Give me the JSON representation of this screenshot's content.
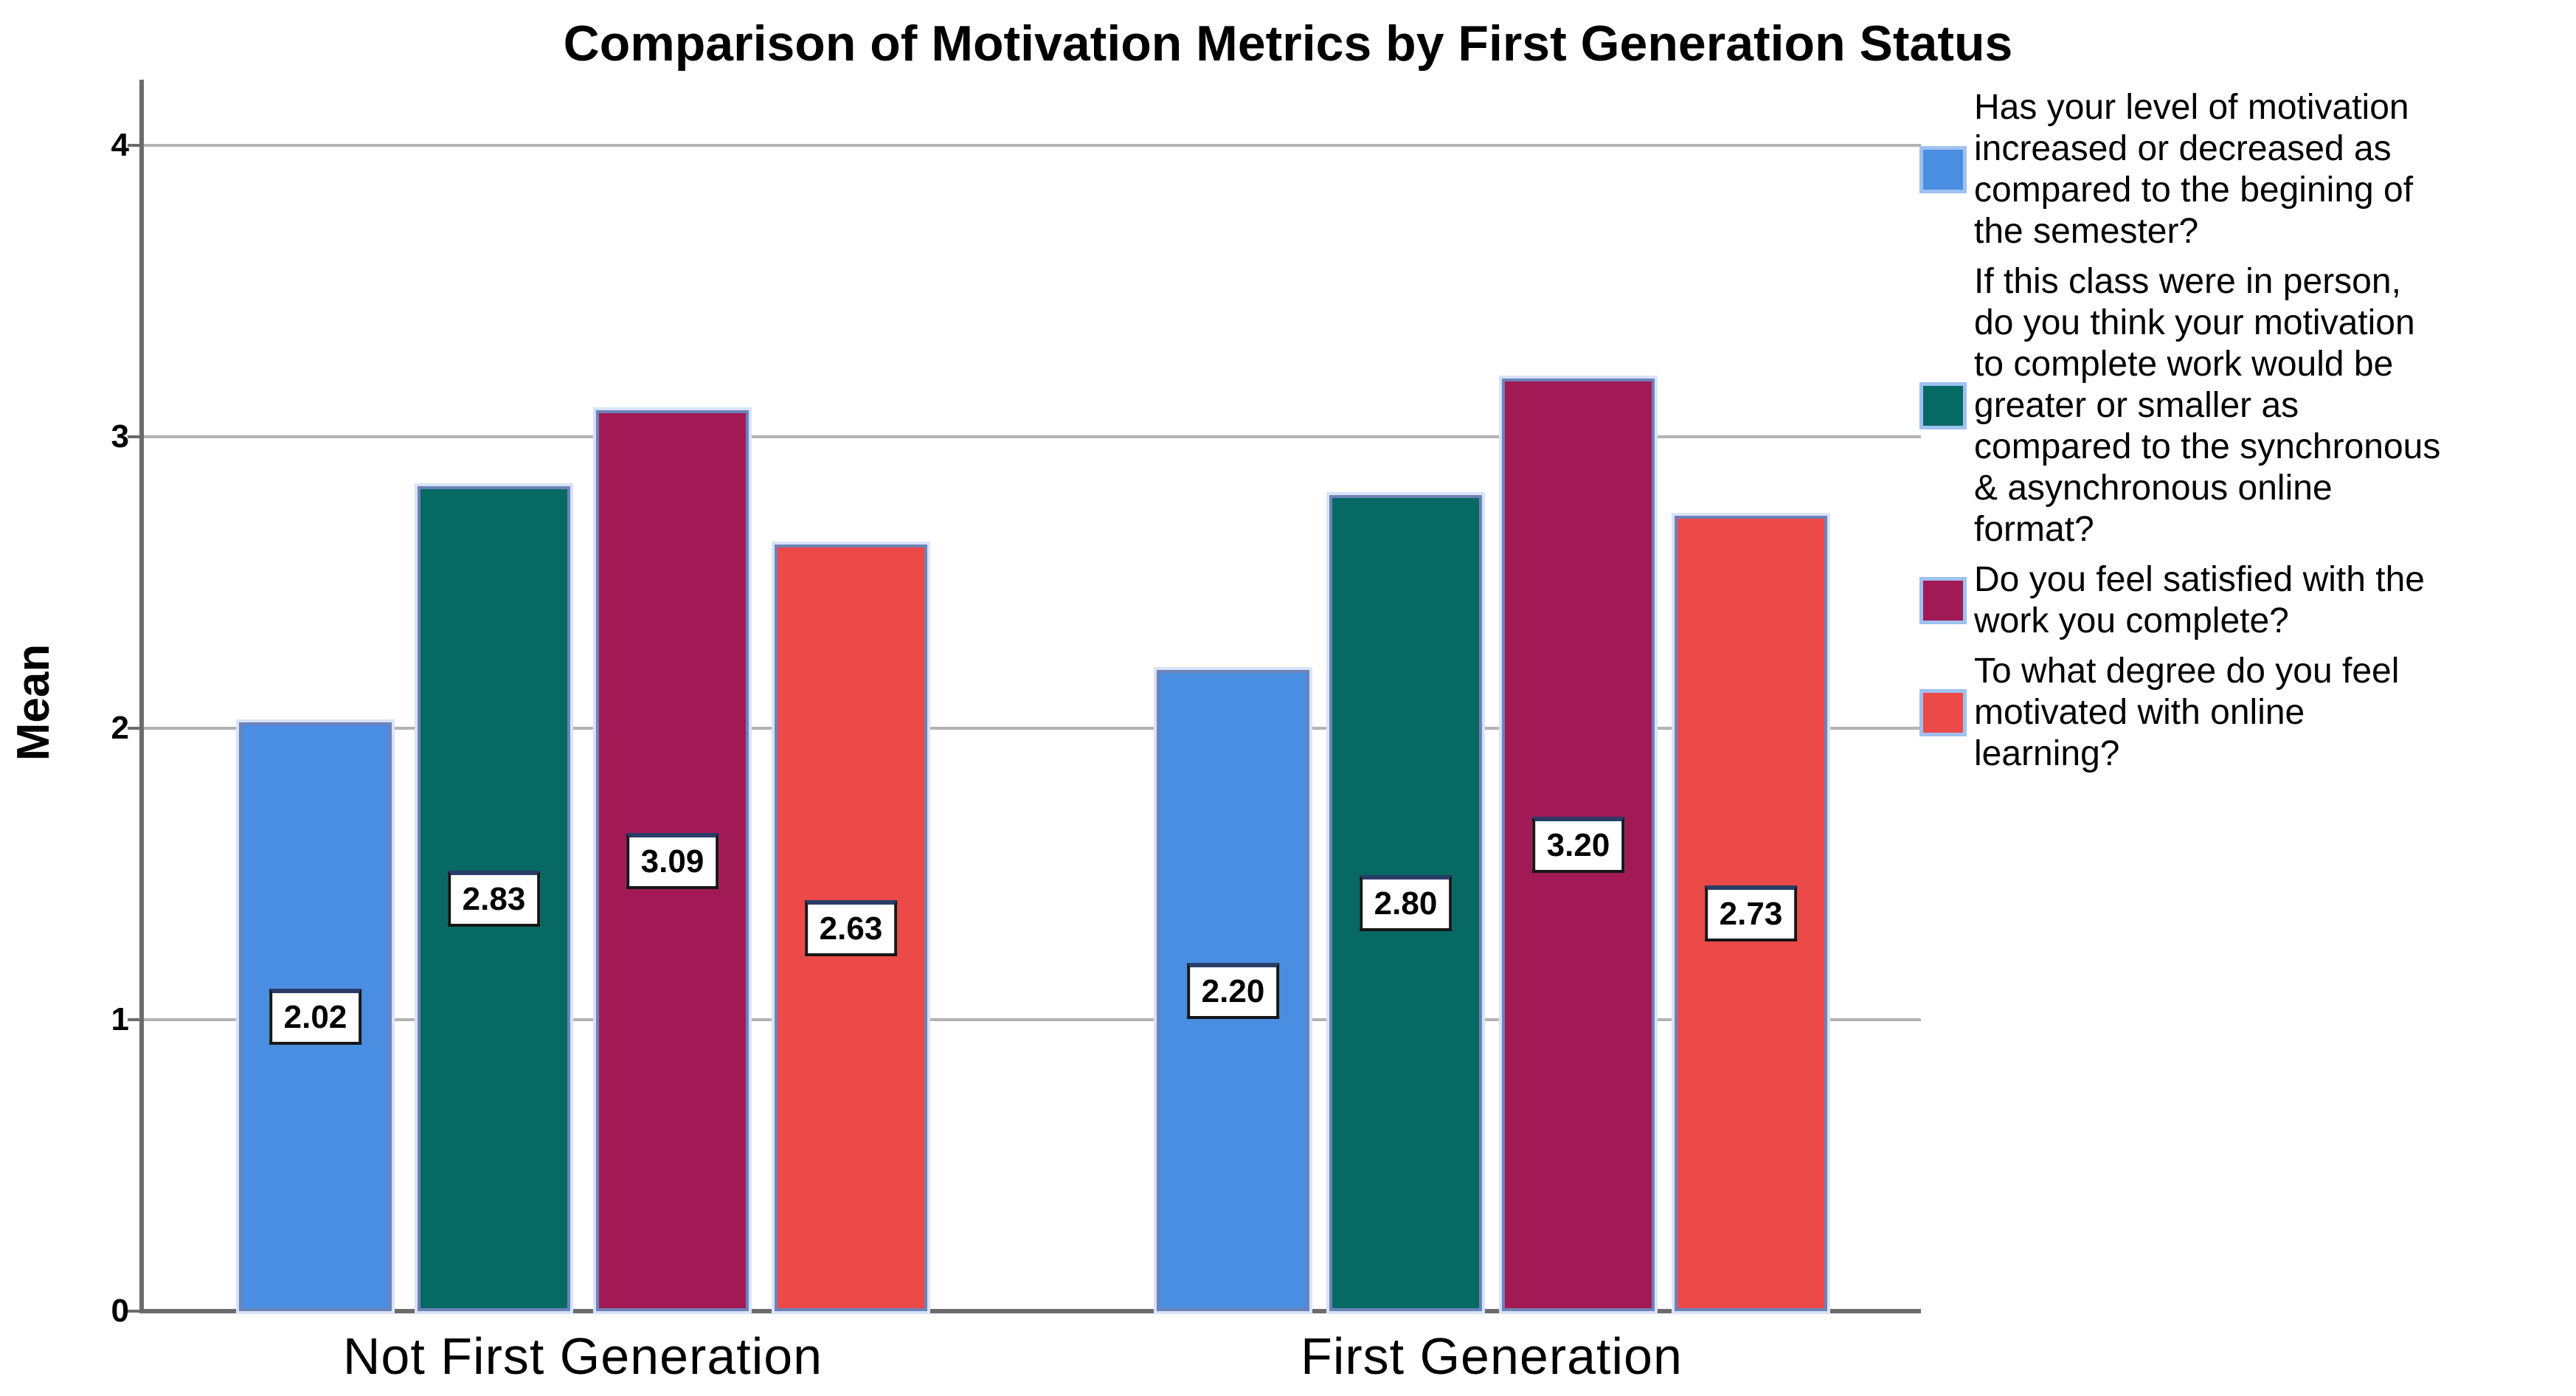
{
  "chart_data": {
    "type": "bar",
    "title": "Comparison of Motivation Metrics by First Generation Status",
    "ylabel": "Mean",
    "xlabel": "",
    "ylim": [
      0,
      4
    ],
    "yticks": [
      0,
      1,
      2,
      3,
      4
    ],
    "grid": true,
    "legend_position": "right",
    "categories": [
      "Not First Generation",
      "First Generation"
    ],
    "series": [
      {
        "name": "Has your level of motivation increased or decreased as compared to the begining of the semester?",
        "color": "#4a8ee2",
        "values": [
          2.02,
          2.2
        ],
        "display_values": [
          "2.02",
          "2.20"
        ]
      },
      {
        "name": "If this class were in person, do you think your motivation to complete work would be greater or smaller as compared to the synchronous & asynchronous online format?",
        "color": "#076964",
        "values": [
          2.83,
          2.8
        ],
        "display_values": [
          "2.83",
          "2.80"
        ]
      },
      {
        "name": "Do you feel satisfied with the work you complete?",
        "color": "#a11a55",
        "values": [
          3.09,
          3.2
        ],
        "display_values": [
          "3.09",
          "3.20"
        ]
      },
      {
        "name": "To what degree do you feel motivated with online learning?",
        "color": "#ec4a49",
        "values": [
          2.63,
          2.73
        ],
        "display_values": [
          "2.63",
          "2.73"
        ]
      }
    ]
  }
}
